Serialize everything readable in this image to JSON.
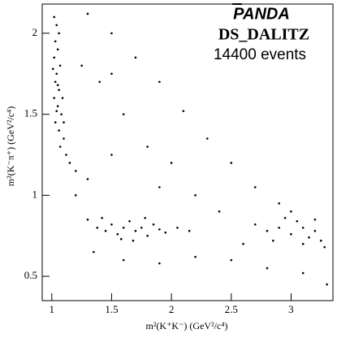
{
  "chart_data": {
    "type": "scatter",
    "title": "PANDA",
    "subtitle": "DS_DALITZ",
    "annotation": "14400 events",
    "xlabel": "m²(K⁺K⁻) (GeV²/c⁴)",
    "ylabel": "m²(K⁻π⁺) (GeV²/c⁴)",
    "xlim": [
      0.92,
      3.35
    ],
    "ylim": [
      0.35,
      2.18
    ],
    "xticks": [
      1,
      1.5,
      2,
      2.5,
      3
    ],
    "yticks": [
      0.5,
      1,
      1.5,
      2
    ],
    "color": "#000000",
    "x": [
      1.02,
      1.04,
      1.06,
      1.03,
      1.05,
      1.02,
      1.07,
      1.04,
      1.03,
      1.06,
      1.02,
      1.05,
      1.08,
      1.03,
      1.06,
      1.1,
      1.07,
      1.12,
      1.15,
      1.2,
      1.01,
      1.05,
      1.09,
      1.04,
      1.1,
      1.3,
      1.38,
      1.45,
      1.5,
      1.55,
      1.6,
      1.65,
      1.7,
      1.75,
      1.8,
      1.85,
      1.9,
      1.42,
      1.58,
      1.68,
      1.78,
      1.95,
      2.05,
      2.15,
      2.7,
      2.8,
      2.9,
      3.0,
      3.05,
      3.1,
      3.15,
      3.2,
      3.25,
      2.95,
      3.1,
      3.2,
      2.85,
      3.28,
      3.0,
      1.3,
      1.5,
      1.7,
      1.9,
      2.1,
      2.3,
      2.5,
      2.7,
      2.9,
      1.4,
      1.6,
      1.8,
      2.0,
      1.3,
      1.5,
      1.2,
      1.35,
      1.6,
      1.9,
      2.2,
      2.5,
      2.8,
      3.1,
      3.3,
      2.4,
      2.2,
      1.9,
      1.25,
      1.5,
      2.6
    ],
    "values": [
      2.1,
      2.05,
      2.0,
      1.95,
      1.9,
      1.85,
      1.8,
      1.75,
      1.7,
      1.65,
      1.6,
      1.55,
      1.5,
      1.45,
      1.4,
      1.35,
      1.3,
      1.25,
      1.2,
      1.15,
      1.78,
      1.68,
      1.6,
      1.52,
      1.45,
      0.85,
      0.8,
      0.78,
      0.82,
      0.76,
      0.8,
      0.84,
      0.78,
      0.8,
      0.75,
      0.82,
      0.79,
      0.86,
      0.73,
      0.72,
      0.86,
      0.77,
      0.8,
      0.78,
      0.82,
      0.78,
      0.8,
      0.76,
      0.84,
      0.8,
      0.74,
      0.78,
      0.72,
      0.86,
      0.7,
      0.85,
      0.72,
      0.68,
      0.9,
      2.12,
      2.0,
      1.85,
      1.7,
      1.52,
      1.35,
      1.2,
      1.05,
      0.95,
      1.7,
      1.5,
      1.3,
      1.2,
      1.1,
      1.25,
      1.0,
      0.65,
      0.6,
      0.58,
      0.62,
      0.6,
      0.55,
      0.52,
      0.45,
      0.9,
      1.0,
      1.05,
      1.8,
      1.75,
      0.7
    ]
  }
}
